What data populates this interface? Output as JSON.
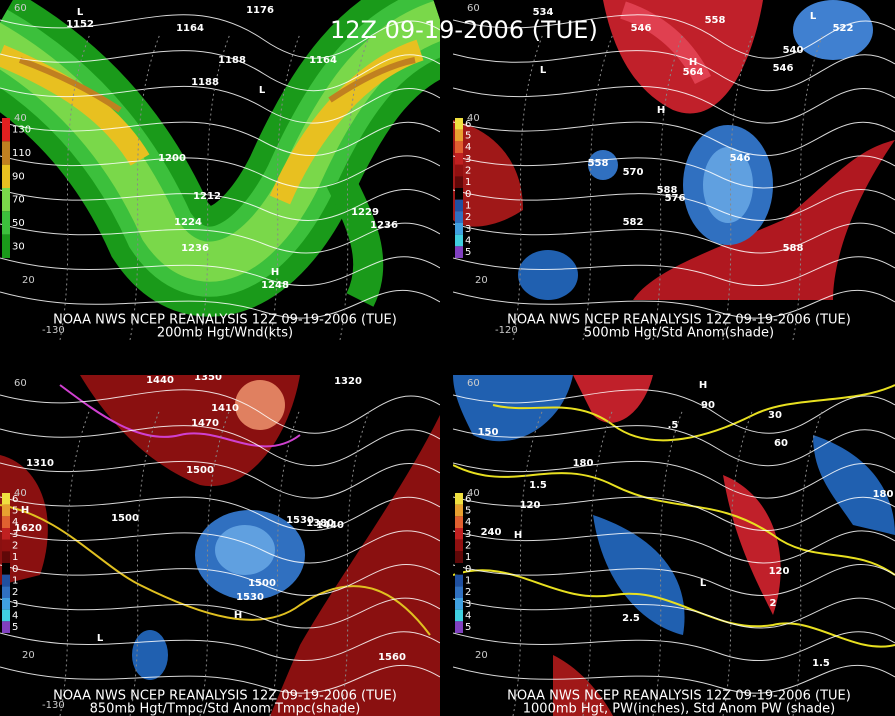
{
  "title": "12Z 09-19-2006 (TUE)",
  "panels": [
    {
      "source": "NOAA NWS NCEP REANALYSIS 12Z 09-19-2006 (TUE)",
      "field": "200mb Hgt/Wnd(kts)",
      "legend": [
        130,
        110,
        90,
        70,
        50,
        30
      ],
      "contour_labels": [
        1152,
        1176,
        1164,
        1188,
        1188,
        1200,
        1212,
        1224,
        1236,
        1248,
        1164,
        1229,
        1236,
        "L",
        "L",
        "H"
      ],
      "axis_labels": [
        "60",
        "40",
        "20",
        "-130"
      ]
    },
    {
      "source": "NOAA NWS NCEP REANALYSIS 12Z 09-19-2006 (TUE)",
      "field": "500mb Hgt/Std Anom(shade)",
      "legend": [
        6,
        5,
        4,
        3,
        2,
        1,
        0,
        1,
        2,
        3,
        4,
        5
      ],
      "contour_labels": [
        534,
        546,
        558,
        540,
        546,
        564,
        570,
        576,
        582,
        588,
        588,
        558,
        522,
        546,
        "H",
        "H",
        "L",
        "L"
      ],
      "axis_labels": [
        "60",
        "40",
        "20",
        "-120"
      ]
    },
    {
      "source": "NOAA NWS NCEP REANALYSIS 12Z 09-19-2006 (TUE)",
      "field": "850mb Hgt/Tmpc/Std Anom Tmpc(shade)",
      "legend": [
        6,
        5,
        4,
        3,
        2,
        1,
        0,
        1,
        2,
        3,
        4,
        5
      ],
      "contour_labels": [
        1440,
        1350,
        1410,
        1470,
        1500,
        1530,
        1560,
        1500,
        1530,
        1620,
        1320,
        1380,
        1440,
        1310,
        1500,
        "H",
        "L",
        "H"
      ],
      "axis_labels": [
        "60",
        "40",
        "20",
        "-130"
      ]
    },
    {
      "source": "NOAA NWS NCEP REANALYSIS 12Z 09-19-2006 (TUE)",
      "field": "1000mb Hgt, PW(inches), Std Anom PW (shade)",
      "legend": [
        6,
        5,
        4,
        3,
        2,
        1,
        0,
        1,
        2,
        3,
        4,
        5
      ],
      "contour_labels": [
        150,
        120,
        180,
        240,
        90,
        60,
        30,
        120,
        180,
        "1.5",
        "2",
        "2.5",
        ".5",
        "1.5",
        "H",
        "H",
        "L"
      ],
      "axis_labels": [
        "60",
        "40",
        "20"
      ]
    }
  ]
}
